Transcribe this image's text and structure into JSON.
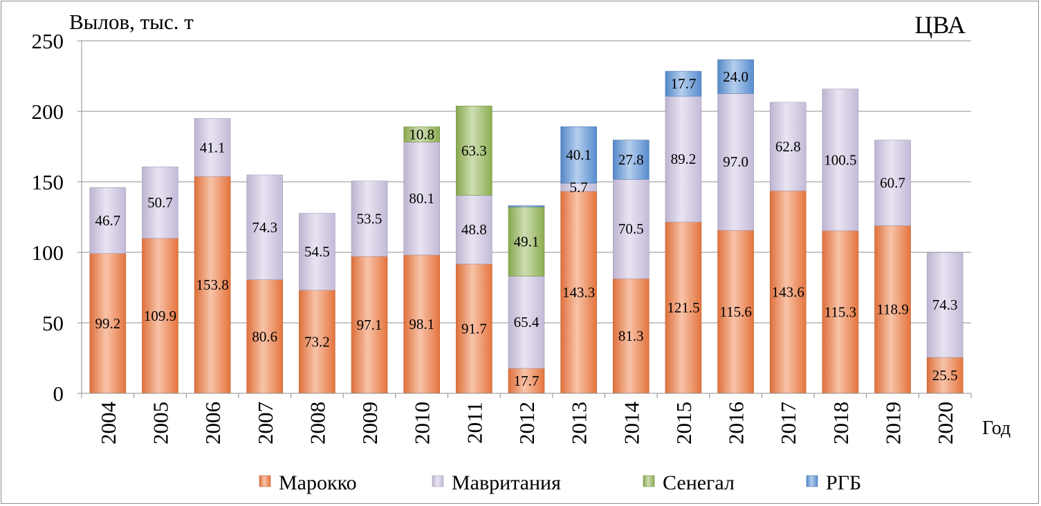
{
  "chart_data": {
    "type": "bar",
    "stacked": true,
    "title": "ЦВА",
    "ylabel": "Вылов, тыс. т",
    "xlabel": "Год",
    "ylim": [
      0,
      250
    ],
    "yticks": [
      "0",
      "50",
      "100",
      "150",
      "200",
      "250"
    ],
    "grid": true,
    "legend_position": "bottom",
    "categories": [
      "2004",
      "2005",
      "2006",
      "2007",
      "2008",
      "2009",
      "2010",
      "2011",
      "2012",
      "2013",
      "2014",
      "2015",
      "2016",
      "2017",
      "2018",
      "2019",
      "2020"
    ],
    "series": [
      {
        "name": "Марокко",
        "color": "#f07a40",
        "values": [
          99.2,
          109.9,
          153.8,
          80.6,
          73.2,
          97.1,
          98.1,
          91.7,
          17.7,
          143.3,
          81.3,
          121.5,
          115.6,
          143.6,
          115.3,
          118.9,
          25.5
        ],
        "labels": [
          "99.2",
          "109.9",
          "153.8",
          "80.6",
          "73.2",
          "97.1",
          "98.1",
          "91.7",
          "17.7",
          "143.3",
          "81.3",
          "121.5",
          "115.6",
          "143.6",
          "115.3",
          "118.9",
          "25.5"
        ]
      },
      {
        "name": "Мавритания",
        "color": "#cdc4e3",
        "values": [
          46.7,
          50.7,
          41.1,
          74.3,
          54.5,
          53.5,
          80.1,
          48.8,
          65.4,
          5.7,
          70.5,
          89.2,
          97.0,
          62.8,
          100.5,
          60.7,
          74.3
        ],
        "labels": [
          "46.7",
          "50.7",
          "41.1",
          "74.3",
          "54.5",
          "53.5",
          "80.1",
          "48.8",
          "65.4",
          "5.7",
          "70.5",
          "89.2",
          "97.0",
          "62.8",
          "100.5",
          "60.7",
          "74.3"
        ]
      },
      {
        "name": "Сенегал",
        "color": "#93b654",
        "values": [
          0,
          0,
          0,
          0,
          0,
          0,
          10.8,
          63.3,
          49.1,
          0,
          0,
          0,
          0,
          0,
          0,
          0,
          0
        ],
        "labels": [
          "",
          "",
          "",
          "",
          "",
          "",
          "10.8",
          "63.3",
          "49.1",
          "",
          "",
          "",
          "",
          "",
          "",
          "",
          ""
        ]
      },
      {
        "name": "РГБ",
        "color": "#5b93d8",
        "values": [
          0,
          0,
          0,
          0,
          0,
          0,
          0,
          0,
          0.9,
          40.1,
          27.8,
          17.7,
          24.0,
          0,
          0,
          0,
          0
        ],
        "labels": [
          "",
          "",
          "",
          "",
          "",
          "",
          "",
          "",
          "",
          "40.1",
          "27.8",
          "17.7",
          "24.0",
          "",
          "",
          "",
          ""
        ]
      }
    ]
  }
}
